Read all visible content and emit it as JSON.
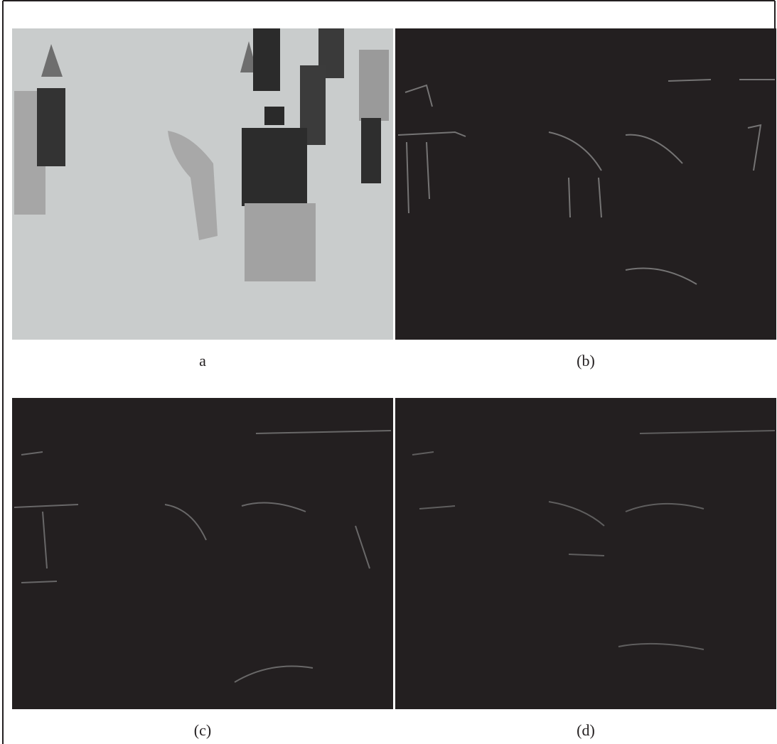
{
  "panels": [
    {
      "label": "a"
    },
    {
      "label": "(b)"
    },
    {
      "label": "(c)"
    },
    {
      "label": "(d)"
    }
  ]
}
